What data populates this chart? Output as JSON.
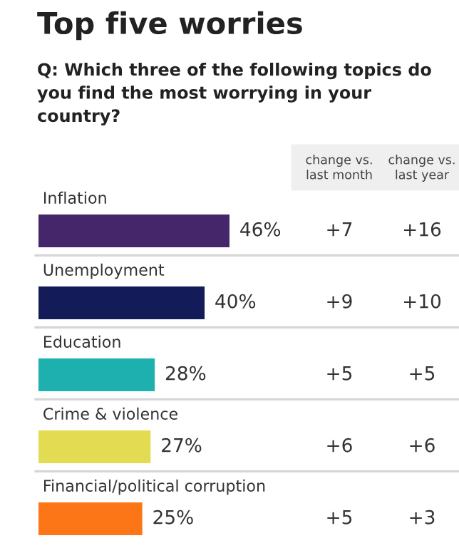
{
  "chart_data": {
    "type": "bar",
    "orientation": "horizontal",
    "title": "Top five worries",
    "subtitle": "Q: Which three of the following topics do you find the most worrying in your country?",
    "categories": [
      "Inflation",
      "Unemployment",
      "Education",
      "Crime & violence",
      "Financial/political corruption"
    ],
    "values": [
      46,
      40,
      28,
      27,
      25
    ],
    "value_labels": [
      "46%",
      "40%",
      "28%",
      "27%",
      "25%"
    ],
    "colors": [
      "#46266a",
      "#131c58",
      "#1eb0ae",
      "#e3db52",
      "#fc7617"
    ],
    "annotations": [
      "change vs.\nlast month",
      "change vs.\nlast year",
      "+7",
      "+16",
      "+9",
      "+10",
      "+5",
      "+5",
      "+6",
      "+6",
      "+5",
      "+3"
    ]
  }
}
